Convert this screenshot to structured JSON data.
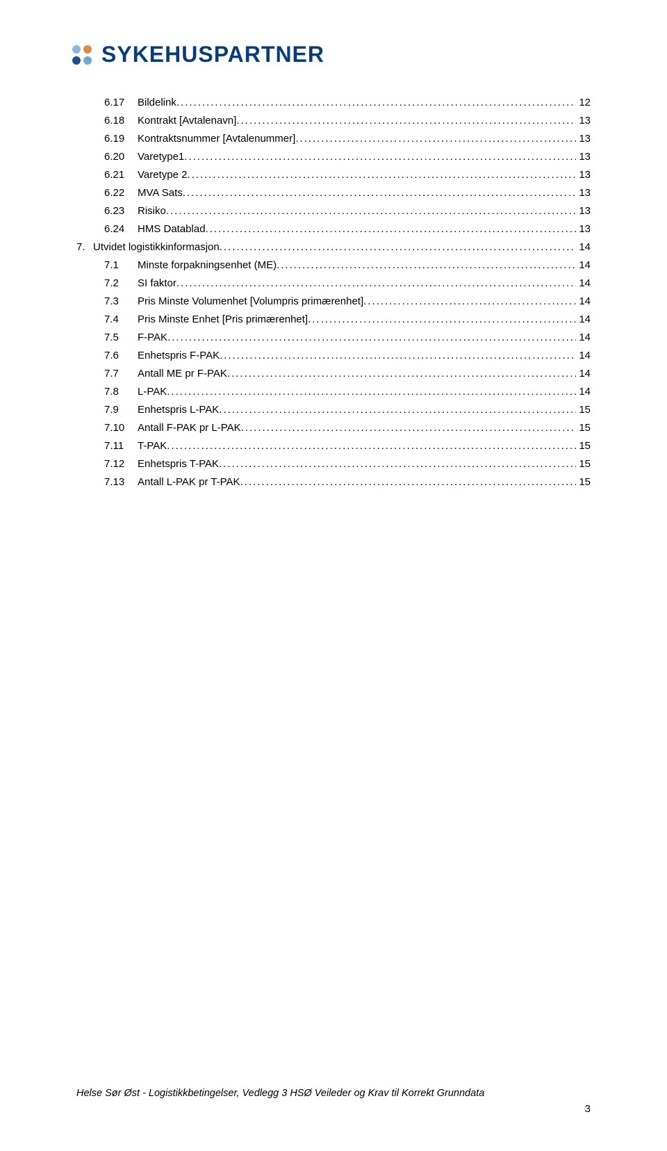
{
  "logo": {
    "dot_colors": [
      "#8fb7d8",
      "#e08a4a",
      "#1e4f8a",
      "#6fa8d6"
    ],
    "wordmark": "SYKEHUSPARTNER",
    "wordmark_color": "#0b3c7a"
  },
  "toc": [
    {
      "level": 1,
      "num": "6.17",
      "title": "Bildelink",
      "page": "12"
    },
    {
      "level": 1,
      "num": "6.18",
      "title": "Kontrakt [Avtalenavn]",
      "page": "13"
    },
    {
      "level": 1,
      "num": "6.19",
      "title": "Kontraktsnummer [Avtalenummer]",
      "page": "13"
    },
    {
      "level": 1,
      "num": "6.20",
      "title": "Varetype1",
      "page": "13"
    },
    {
      "level": 1,
      "num": "6.21",
      "title": "Varetype 2",
      "page": "13"
    },
    {
      "level": 1,
      "num": "6.22",
      "title": "MVA Sats",
      "page": "13"
    },
    {
      "level": 1,
      "num": "6.23",
      "title": "Risiko",
      "page": "13"
    },
    {
      "level": 1,
      "num": "6.24",
      "title": "HMS Datablad",
      "page": "13"
    },
    {
      "level": 0,
      "num": "7.",
      "title": "Utvidet logistikkinformasjon",
      "page": "14"
    },
    {
      "level": 1,
      "num": "7.1",
      "title": "Minste forpakningsenhet (ME)",
      "page": "14"
    },
    {
      "level": 1,
      "num": "7.2",
      "title": "SI faktor",
      "page": "14"
    },
    {
      "level": 1,
      "num": "7.3",
      "title": "Pris Minste Volumenhet [Volumpris primærenhet]",
      "page": "14"
    },
    {
      "level": 1,
      "num": "7.4",
      "title": "Pris Minste Enhet [Pris primærenhet]",
      "page": "14"
    },
    {
      "level": 1,
      "num": "7.5",
      "title": "F-PAK",
      "page": "14"
    },
    {
      "level": 1,
      "num": "7.6",
      "title": "Enhetspris F-PAK",
      "page": "14"
    },
    {
      "level": 1,
      "num": "7.7",
      "title": "Antall ME pr F-PAK",
      "page": "14"
    },
    {
      "level": 1,
      "num": "7.8",
      "title": "L-PAK",
      "page": "14"
    },
    {
      "level": 1,
      "num": "7.9",
      "title": "Enhetspris L-PAK",
      "page": "15"
    },
    {
      "level": 1,
      "num": "7.10",
      "title": "Antall F-PAK pr L-PAK",
      "page": "15"
    },
    {
      "level": 1,
      "num": "7.11",
      "title": "T-PAK",
      "page": "15"
    },
    {
      "level": 1,
      "num": "7.12",
      "title": "Enhetspris T-PAK",
      "page": "15"
    },
    {
      "level": 1,
      "num": "7.13",
      "title": "Antall L-PAK pr T-PAK",
      "page": "15"
    }
  ],
  "footer": {
    "text": "Helse Sør Øst - Logistikkbetingelser, Vedlegg 3 HSØ Veileder og Krav til Korrekt Grunndata",
    "page_number": "3"
  }
}
